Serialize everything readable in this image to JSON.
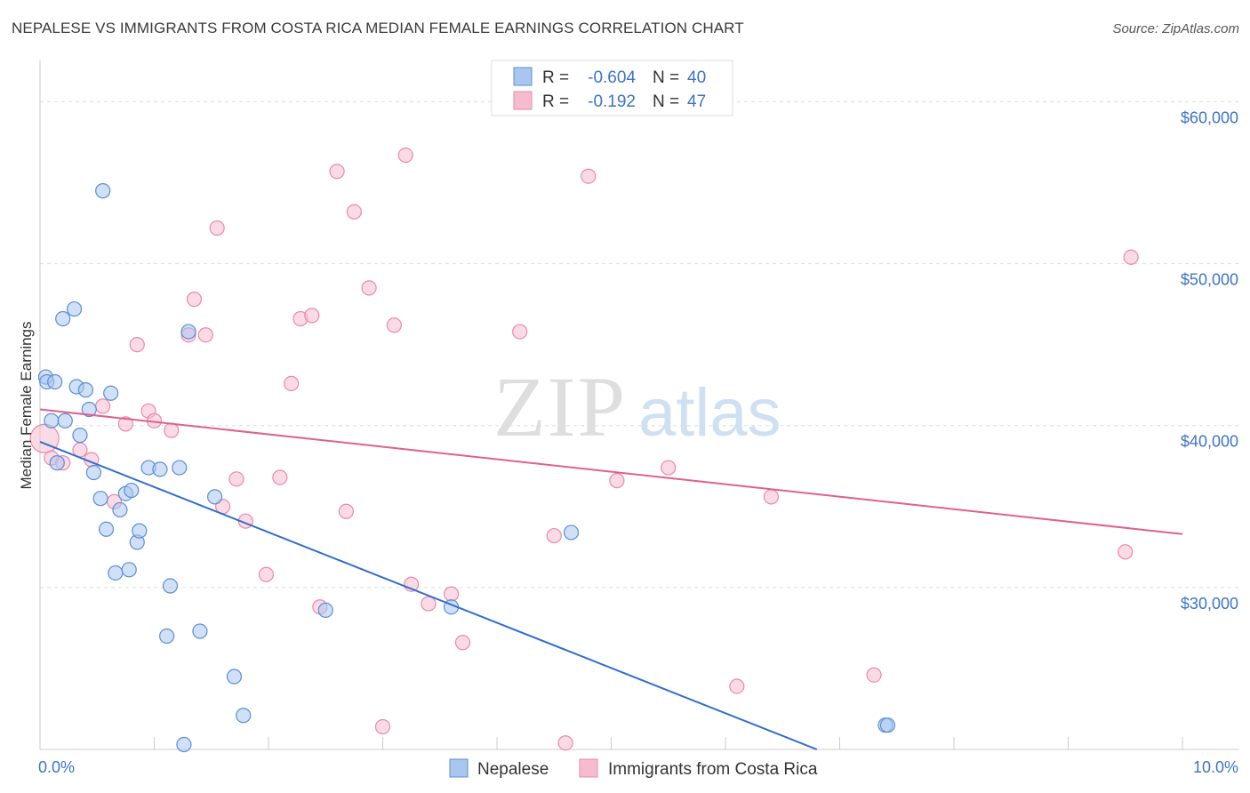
{
  "header": {
    "title": "NEPALESE VS IMMIGRANTS FROM COSTA RICA MEDIAN FEMALE EARNINGS CORRELATION CHART",
    "source": "Source: ZipAtlas.com"
  },
  "watermark": {
    "zip": "ZIP",
    "atlas": "atlas"
  },
  "colors": {
    "blue_fill": "#a9c6ee",
    "blue_stroke": "#5b8fd6",
    "blue_line": "#2f6fcf",
    "pink_fill": "#f5bcd0",
    "pink_stroke": "#e98aaa",
    "pink_line": "#e0608c",
    "tick_text": "#3d74c4",
    "grid": "#dddddd"
  },
  "legend": {
    "rows": [
      {
        "r_label": "R =",
        "r_value": "-0.604",
        "n_label": "N =",
        "n_value": "40",
        "series": "blue"
      },
      {
        "r_label": "R =",
        "r_value": "-0.192",
        "n_label": "N =",
        "n_value": "47",
        "series": "pink"
      }
    ]
  },
  "bottom_legend": [
    {
      "label": "Nepalese",
      "series": "blue"
    },
    {
      "label": "Immigrants from Costa Rica",
      "series": "pink"
    }
  ],
  "chart_data": {
    "type": "scatter",
    "title": "NEPALESE VS IMMIGRANTS FROM COSTA RICA MEDIAN FEMALE EARNINGS CORRELATION CHART",
    "xlabel": "",
    "ylabel": "Median Female Earnings",
    "xlim": [
      0,
      10
    ],
    "ylim": [
      20000,
      62000
    ],
    "x_tick_labels": [
      {
        "value": 0,
        "label": "0.0%"
      },
      {
        "value": 10,
        "label": "10.0%"
      }
    ],
    "y_tick_labels": [
      {
        "value": 30000,
        "label": "$30,000"
      },
      {
        "value": 40000,
        "label": "$40,000"
      },
      {
        "value": 50000,
        "label": "$50,000"
      },
      {
        "value": 60000,
        "label": "$60,000"
      }
    ],
    "grid": true,
    "legend_position": "top-center",
    "series": [
      {
        "name": "Nepalese",
        "color": "blue",
        "r": -0.604,
        "n": 40,
        "trend": {
          "x": [
            0,
            6.8
          ],
          "y": [
            39000,
            20000
          ]
        },
        "points": [
          [
            0.05,
            43000
          ],
          [
            0.06,
            42700
          ],
          [
            0.1,
            40300
          ],
          [
            0.13,
            42700
          ],
          [
            0.15,
            37700
          ],
          [
            0.2,
            46600
          ],
          [
            0.22,
            40300
          ],
          [
            0.3,
            47200
          ],
          [
            0.32,
            42400
          ],
          [
            0.35,
            39400
          ],
          [
            0.4,
            42200
          ],
          [
            0.43,
            41000
          ],
          [
            0.47,
            37100
          ],
          [
            0.53,
            35500
          ],
          [
            0.58,
            33600
          ],
          [
            0.62,
            42000
          ],
          [
            0.66,
            30900
          ],
          [
            0.7,
            34800
          ],
          [
            0.75,
            35800
          ],
          [
            0.78,
            31100
          ],
          [
            0.8,
            36000
          ],
          [
            0.85,
            32800
          ],
          [
            0.87,
            33500
          ],
          [
            0.95,
            37400
          ],
          [
            1.05,
            37300
          ],
          [
            1.11,
            27000
          ],
          [
            1.14,
            30100
          ],
          [
            1.22,
            37400
          ],
          [
            1.26,
            20300
          ],
          [
            1.3,
            45800
          ],
          [
            1.4,
            27300
          ],
          [
            1.53,
            35600
          ],
          [
            1.7,
            24500
          ],
          [
            1.78,
            22100
          ],
          [
            2.5,
            28600
          ],
          [
            3.6,
            28800
          ],
          [
            4.65,
            33400
          ],
          [
            7.4,
            21500
          ],
          [
            7.42,
            21500
          ],
          [
            0.55,
            54500
          ]
        ]
      },
      {
        "name": "Immigrants from Costa Rica",
        "color": "pink",
        "r": -0.192,
        "n": 47,
        "trend": {
          "x": [
            0,
            10
          ],
          "y": [
            41000,
            33300
          ]
        },
        "points": [
          [
            0.04,
            39200
          ],
          [
            0.1,
            38000
          ],
          [
            0.45,
            37900
          ],
          [
            0.55,
            41200
          ],
          [
            0.65,
            35300
          ],
          [
            0.75,
            40100
          ],
          [
            0.85,
            45000
          ],
          [
            0.95,
            40900
          ],
          [
            1.0,
            40300
          ],
          [
            1.15,
            39700
          ],
          [
            1.3,
            45600
          ],
          [
            1.35,
            47800
          ],
          [
            1.45,
            45600
          ],
          [
            1.55,
            52200
          ],
          [
            1.6,
            35000
          ],
          [
            1.72,
            36700
          ],
          [
            1.8,
            34100
          ],
          [
            1.98,
            30800
          ],
          [
            2.1,
            36800
          ],
          [
            2.2,
            42600
          ],
          [
            2.28,
            46600
          ],
          [
            2.38,
            46800
          ],
          [
            2.45,
            28800
          ],
          [
            2.6,
            55700
          ],
          [
            2.68,
            34700
          ],
          [
            2.75,
            53200
          ],
          [
            2.88,
            48500
          ],
          [
            3.0,
            21400
          ],
          [
            3.1,
            46200
          ],
          [
            3.2,
            56700
          ],
          [
            3.25,
            30200
          ],
          [
            3.4,
            29000
          ],
          [
            3.6,
            29600
          ],
          [
            3.7,
            26600
          ],
          [
            4.2,
            45800
          ],
          [
            4.5,
            33200
          ],
          [
            4.6,
            20400
          ],
          [
            4.8,
            55400
          ],
          [
            5.05,
            36600
          ],
          [
            5.5,
            37400
          ],
          [
            6.1,
            23900
          ],
          [
            6.4,
            35600
          ],
          [
            7.3,
            24600
          ],
          [
            9.5,
            32200
          ],
          [
            9.55,
            50400
          ],
          [
            0.2,
            37700
          ],
          [
            0.35,
            38500
          ]
        ]
      }
    ]
  }
}
